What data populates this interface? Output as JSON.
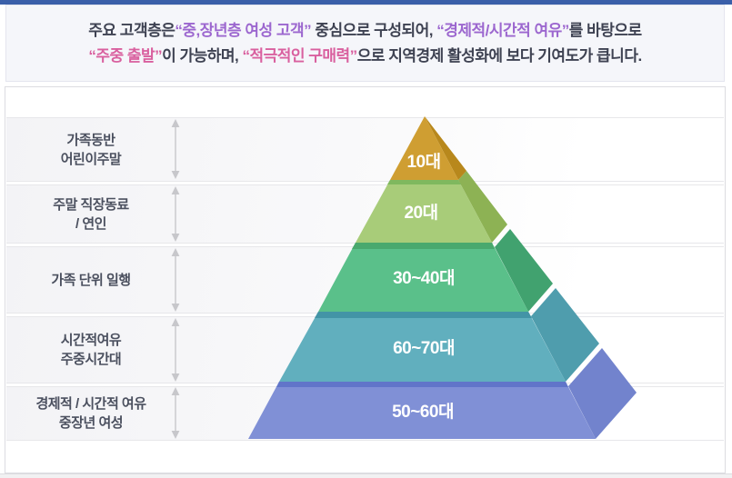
{
  "header": {
    "line1": [
      {
        "text": "주요 고객층은",
        "role": "default"
      },
      {
        "text": "“중,장년층 여성 고객”",
        "role": "purple"
      },
      {
        "text": " 중심으로 구성되어, ",
        "role": "default"
      },
      {
        "text": "“경제적/시간적 여유”",
        "role": "purple"
      },
      {
        "text": "를 바탕으로",
        "role": "default"
      }
    ],
    "line2": [
      {
        "text": "“주중 출발”",
        "role": "pink"
      },
      {
        "text": "이 가능하며, ",
        "role": "default"
      },
      {
        "text": "“적극적인 구매력”",
        "role": "pink"
      },
      {
        "text": "으로 지역경제 활성화에 보다 기여도가 큽니다.",
        "role": "default"
      }
    ],
    "colors": {
      "default": "#3e4252",
      "purple": "#9c67cf",
      "pink": "#d9609f",
      "top_bar": "#3a5fa9",
      "background": "#f5f6fa"
    }
  },
  "chart_data": {
    "type": "pyramid",
    "title": "",
    "levels_top_to_bottom": [
      {
        "age_group": "10대",
        "segment": "가족동반 어린이주말",
        "front_color": "#cf9e32",
        "side_color": "#b8881c",
        "edge_color": "#cf9e32"
      },
      {
        "age_group": "20대",
        "segment": "주말 직장동료 / 연인",
        "front_color": "#a8cc79",
        "side_color": "#8db254",
        "edge_color": "#7fb85e"
      },
      {
        "age_group": "30~40대",
        "segment": "가족 단위 일행",
        "front_color": "#5ac08a",
        "side_color": "#41a26f",
        "edge_color": "#49a96e"
      },
      {
        "age_group": "60~70대",
        "segment": "시간적여유 주중시간대",
        "front_color": "#61afbe",
        "side_color": "#4f9dad",
        "edge_color": "#4394a6"
      },
      {
        "age_group": "50~60대",
        "segment": "경제적 / 시간적 여유 중장년 여성",
        "front_color": "#8090d6",
        "side_color": "#7283cd",
        "edge_color": "#6175c9"
      }
    ]
  },
  "rows": [
    {
      "line1": "가족동반",
      "line2": "어린이주말"
    },
    {
      "line1": "주말 직장동료",
      "line2": "/ 연인"
    },
    {
      "line1": "가족 단위 일행",
      "line2": ""
    },
    {
      "line1": "시간적여유",
      "line2": "주중시간대"
    },
    {
      "line1": "경제적 / 시간적 여유",
      "line2": "중장년 여성"
    }
  ],
  "arrow_color": "#c7c7cb",
  "band_text_color": "#ffffff"
}
